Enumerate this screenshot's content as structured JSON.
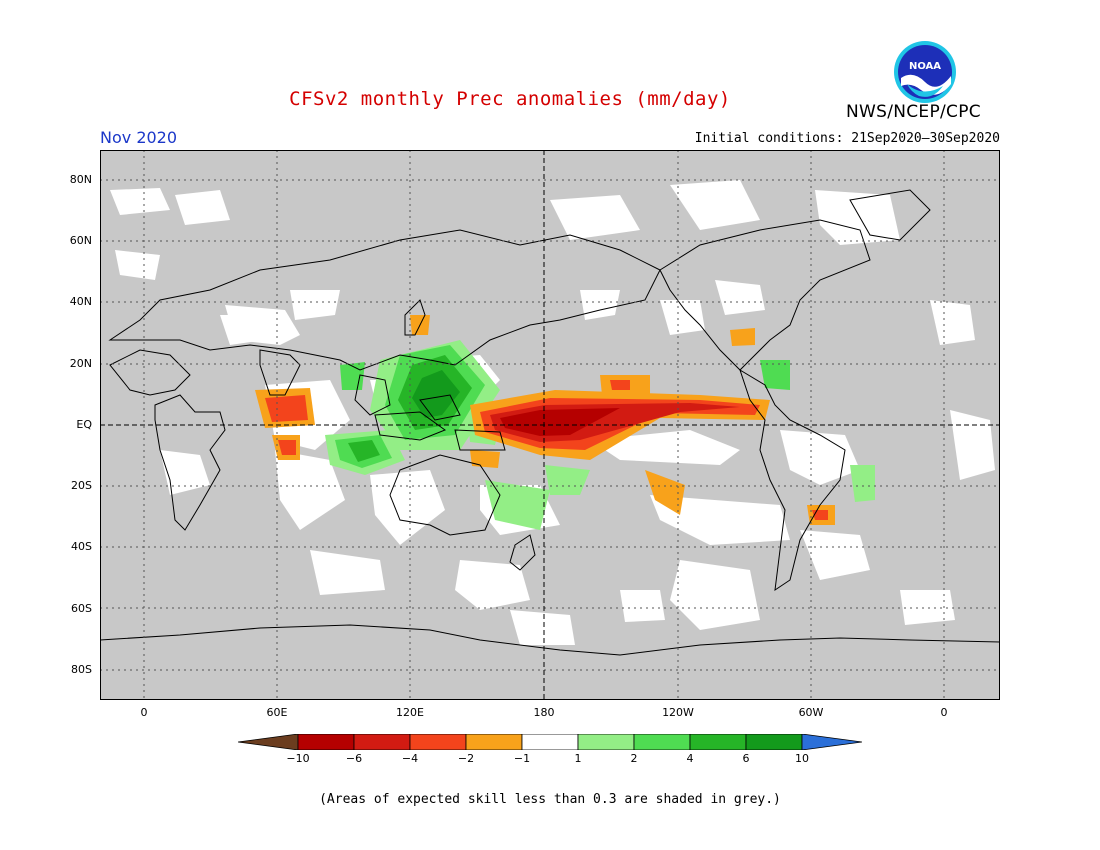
{
  "header": {
    "title": "CFSv2 monthly Prec anomalies (mm/day)",
    "month": "Nov 2020",
    "initial_conditions": "Initial conditions: 21Sep2020–30Sep2020",
    "agency": "NWS/NCEP/CPC",
    "logo_text": "NOAA"
  },
  "axes": {
    "lat_labels": [
      "80N",
      "60N",
      "40N",
      "20N",
      "EQ",
      "20S",
      "40S",
      "60S",
      "80S"
    ],
    "lon_labels": [
      "0",
      "60E",
      "120E",
      "180",
      "120W",
      "60W",
      "0"
    ]
  },
  "legend": {
    "labels": [
      "−10",
      "−6",
      "−4",
      "−2",
      "−1",
      "1",
      "2",
      "4",
      "6",
      "10"
    ],
    "colors": [
      "#6b3d1f",
      "#b50000",
      "#d21b12",
      "#f3441c",
      "#f8a21b",
      "#ffffff",
      "#93ee86",
      "#4fdc52",
      "#26b527",
      "#139a1c",
      "#2b6fd8"
    ]
  },
  "footnote": "(Areas of expected skill less than 0.3 are shaded in grey.)",
  "map_colors": {
    "background": "#c8c8c8",
    "no_skill": "#c8c8c8",
    "coastline": "#000000"
  }
}
